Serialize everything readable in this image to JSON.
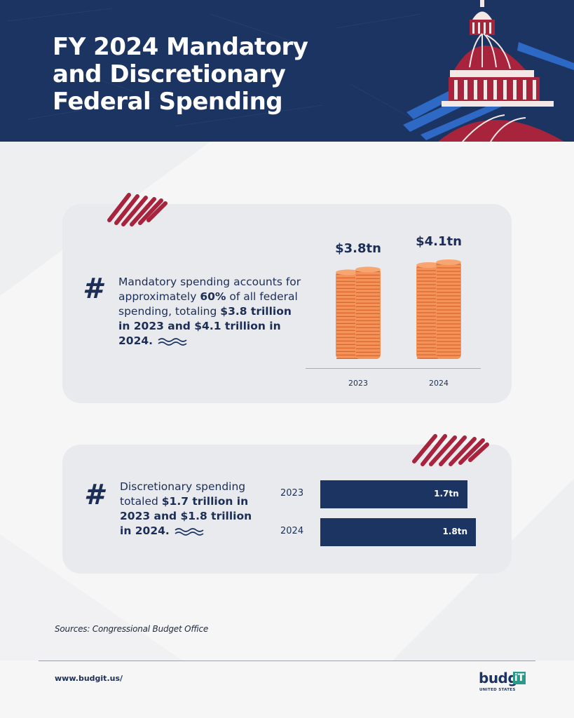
{
  "header": {
    "title_lines": [
      "FY 2024 Mandatory",
      "and Discretionary",
      "Federal Spending"
    ]
  },
  "mandatory": {
    "hash": "#",
    "text_parts": [
      "Mandatory spending accounts for approximately ",
      "60%",
      " of all federal spending, totaling ",
      "$3.8 trillion in 2023 and $4.1 trillion in 2024."
    ]
  },
  "discretionary": {
    "hash": "#",
    "text_parts": [
      "Discretionary spending totaled ",
      "$1.7 trillion in 2023 and $1.8 trillion in 2024."
    ]
  },
  "chart_data": [
    {
      "type": "bar",
      "categories": [
        "2023",
        "2024"
      ],
      "values": [
        3.8,
        4.1
      ],
      "value_labels": [
        "$3.8tn",
        "$4.1tn"
      ],
      "units": "trillion USD",
      "orientation": "vertical",
      "mark_style": "coin stacks",
      "colors": {
        "coin": "#f3935a",
        "coin_edge": "#d9652f",
        "label": "#1c2e56"
      }
    },
    {
      "type": "bar",
      "categories": [
        "2023",
        "2024"
      ],
      "values": [
        1.7,
        1.8
      ],
      "value_labels": [
        "1.7tn",
        "1.8tn"
      ],
      "units": "trillion USD",
      "orientation": "horizontal",
      "colors": {
        "bar": "#1c3461",
        "label": "#ffffff"
      }
    }
  ],
  "footer": {
    "source": "Sources: Congressional Budget Office",
    "url": "www.budgit.us/",
    "logo_word": "budg",
    "logo_box": "iT",
    "logo_sub": "UNITED STATES"
  },
  "colors": {
    "navy": "#1c3461",
    "crimson": "#a8243d",
    "accent_blue": "#2f6fd0",
    "card_bg": "#e9eaed",
    "page_bg": "#f6f6f7"
  }
}
